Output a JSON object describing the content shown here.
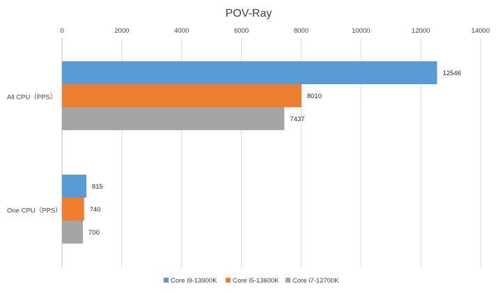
{
  "chart_data": {
    "type": "bar",
    "orientation": "horizontal",
    "title": "POV-Ray",
    "xlabel": "",
    "ylabel": "",
    "xlim": [
      0,
      14000
    ],
    "x_ticks": [
      "0",
      "2000",
      "4000",
      "6000",
      "8000",
      "10000",
      "12000",
      "14000"
    ],
    "x_axis_position": "top",
    "grid": true,
    "legend_position": "bottom",
    "categories": [
      "All CPU（PPS）",
      "One CPU（PPS）"
    ],
    "series": [
      {
        "name": "Core i9-13900K",
        "color": "#5B9BD5",
        "values": [
          12546,
          815
        ]
      },
      {
        "name": "Core i5-13600K",
        "color": "#ED7D31",
        "values": [
          8010,
          740
        ]
      },
      {
        "name": "Core i7-12700K",
        "color": "#A5A5A5",
        "values": [
          7437,
          700
        ]
      }
    ]
  }
}
